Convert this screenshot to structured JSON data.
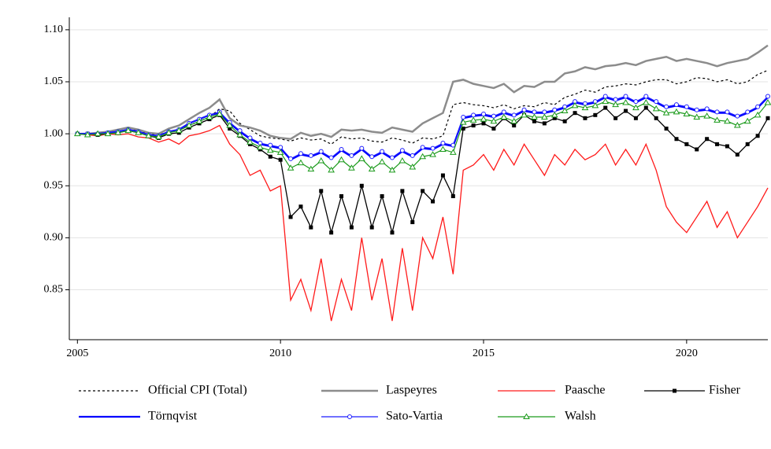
{
  "chart_data": {
    "type": "line",
    "x": [
      2005,
      2005.25,
      2005.5,
      2005.75,
      2006,
      2006.25,
      2006.5,
      2006.75,
      2007,
      2007.25,
      2007.5,
      2007.75,
      2008,
      2008.25,
      2008.5,
      2008.75,
      2009,
      2009.25,
      2009.5,
      2009.75,
      2010,
      2010.25,
      2010.5,
      2010.75,
      2011,
      2011.25,
      2011.5,
      2011.75,
      2012,
      2012.25,
      2012.5,
      2012.75,
      2013,
      2013.25,
      2013.5,
      2013.75,
      2014,
      2014.25,
      2014.5,
      2014.75,
      2015,
      2015.25,
      2015.5,
      2015.75,
      2016,
      2016.25,
      2016.5,
      2016.75,
      2017,
      2017.25,
      2017.5,
      2017.75,
      2018,
      2018.25,
      2018.5,
      2018.75,
      2019,
      2019.25,
      2019.5,
      2019.75,
      2020,
      2020.25,
      2020.5,
      2020.75,
      2021,
      2021.25,
      2021.5,
      2021.75,
      2022
    ],
    "xlim": [
      2004.8,
      2022
    ],
    "xticks": [
      2005,
      2010,
      2015,
      2020
    ],
    "ylim": [
      0.802,
      1.112
    ],
    "yticks": [
      {
        "value": 0.85,
        "label": "0.85"
      },
      {
        "value": 0.9,
        "label": "0.90"
      },
      {
        "value": 0.95,
        "label": "0.95"
      },
      {
        "value": 1,
        "label": "1.00"
      },
      {
        "value": 1.05,
        "label": "1.05"
      },
      {
        "value": 1.1,
        "label": "1.10"
      }
    ],
    "grid": true,
    "series": [
      {
        "name": "Official CPI (Total)",
        "color": "#000000",
        "dash": true,
        "width": 1.2,
        "marker": null,
        "values": [
          1.0,
          0.999,
          1.0,
          1.001,
          1.002,
          1.004,
          1.003,
          1.0,
          0.999,
          1.002,
          1.004,
          1.008,
          1.012,
          1.016,
          1.024,
          1.022,
          1.01,
          1.004,
          0.998,
          0.996,
          0.995,
          0.993,
          0.996,
          0.994,
          0.995,
          0.99,
          0.997,
          0.995,
          0.996,
          0.993,
          0.992,
          0.996,
          0.994,
          0.991,
          0.996,
          0.995,
          0.998,
          1.028,
          1.03,
          1.028,
          1.027,
          1.025,
          1.028,
          1.024,
          1.027,
          1.026,
          1.03,
          1.028,
          1.035,
          1.038,
          1.042,
          1.04,
          1.045,
          1.046,
          1.048,
          1.047,
          1.05,
          1.052,
          1.052,
          1.048,
          1.05,
          1.054,
          1.053,
          1.05,
          1.052,
          1.048,
          1.05,
          1.057,
          1.061
        ]
      },
      {
        "name": "Laspeyres",
        "color": "#8c8c8c",
        "dash": false,
        "width": 2.5,
        "marker": null,
        "values": [
          1.0,
          1.0,
          1.001,
          1.002,
          1.004,
          1.006,
          1.004,
          1.001,
          1.0,
          1.005,
          1.008,
          1.014,
          1.02,
          1.025,
          1.033,
          1.015,
          1.008,
          1.006,
          1.003,
          0.998,
          0.996,
          0.995,
          1.001,
          0.998,
          1.0,
          0.997,
          1.004,
          1.003,
          1.004,
          1.002,
          1.001,
          1.006,
          1.004,
          1.002,
          1.01,
          1.015,
          1.02,
          1.05,
          1.052,
          1.048,
          1.046,
          1.044,
          1.048,
          1.04,
          1.046,
          1.045,
          1.05,
          1.05,
          1.058,
          1.06,
          1.064,
          1.062,
          1.065,
          1.066,
          1.068,
          1.066,
          1.07,
          1.072,
          1.074,
          1.07,
          1.072,
          1.07,
          1.068,
          1.065,
          1.068,
          1.07,
          1.072,
          1.078,
          1.085
        ]
      },
      {
        "name": "Paasche",
        "color": "#ff1a1a",
        "dash": false,
        "width": 1.3,
        "marker": null,
        "values": [
          1.0,
          0.999,
          0.998,
          1.0,
          0.999,
          1.0,
          0.997,
          0.996,
          0.992,
          0.995,
          0.99,
          0.998,
          1.0,
          1.003,
          1.008,
          0.99,
          0.98,
          0.96,
          0.965,
          0.945,
          0.95,
          0.84,
          0.86,
          0.83,
          0.88,
          0.82,
          0.86,
          0.83,
          0.9,
          0.84,
          0.88,
          0.82,
          0.89,
          0.83,
          0.9,
          0.88,
          0.92,
          0.865,
          0.965,
          0.97,
          0.98,
          0.965,
          0.985,
          0.97,
          0.99,
          0.975,
          0.96,
          0.98,
          0.97,
          0.985,
          0.975,
          0.98,
          0.99,
          0.97,
          0.985,
          0.97,
          0.99,
          0.965,
          0.93,
          0.915,
          0.905,
          0.92,
          0.935,
          0.91,
          0.925,
          0.9,
          0.915,
          0.93,
          0.948
        ]
      },
      {
        "name": "Fisher",
        "color": "#000000",
        "dash": false,
        "width": 1.3,
        "marker": "square",
        "values": [
          1.0,
          1.0,
          0.999,
          1.0,
          1.001,
          1.003,
          1.001,
          0.998,
          0.996,
          1.0,
          1.001,
          1.006,
          1.01,
          1.014,
          1.018,
          1.005,
          0.998,
          0.99,
          0.985,
          0.978,
          0.975,
          0.92,
          0.93,
          0.91,
          0.945,
          0.905,
          0.94,
          0.91,
          0.95,
          0.91,
          0.94,
          0.905,
          0.945,
          0.915,
          0.945,
          0.935,
          0.96,
          0.94,
          1.005,
          1.008,
          1.01,
          1.005,
          1.015,
          1.008,
          1.018,
          1.012,
          1.01,
          1.015,
          1.012,
          1.02,
          1.015,
          1.018,
          1.025,
          1.015,
          1.022,
          1.015,
          1.025,
          1.015,
          1.005,
          0.995,
          0.99,
          0.985,
          0.995,
          0.99,
          0.988,
          0.98,
          0.99,
          0.998,
          1.015
        ]
      },
      {
        "name": "Törnqvist",
        "color": "#0000ff",
        "dash": false,
        "width": 2.2,
        "marker": null,
        "values": [
          1.0,
          1.0,
          1.0,
          1.001,
          1.002,
          1.004,
          1.002,
          0.999,
          0.998,
          1.002,
          1.004,
          1.01,
          1.014,
          1.018,
          1.02,
          1.01,
          1.002,
          0.995,
          0.99,
          0.988,
          0.986,
          0.975,
          0.98,
          0.978,
          0.982,
          0.976,
          0.984,
          0.978,
          0.985,
          0.977,
          0.982,
          0.976,
          0.983,
          0.978,
          0.986,
          0.985,
          0.99,
          0.988,
          1.015,
          1.017,
          1.018,
          1.016,
          1.02,
          1.017,
          1.022,
          1.02,
          1.02,
          1.022,
          1.025,
          1.03,
          1.028,
          1.03,
          1.035,
          1.032,
          1.035,
          1.03,
          1.035,
          1.03,
          1.025,
          1.027,
          1.025,
          1.022,
          1.023,
          1.02,
          1.02,
          1.016,
          1.02,
          1.025,
          1.035
        ]
      },
      {
        "name": "Sato-Vartia",
        "color": "#1a1aff",
        "dash": false,
        "width": 1.2,
        "marker": "circle",
        "values": [
          1.0,
          1.0,
          1.0,
          1.001,
          1.002,
          1.004,
          1.002,
          0.999,
          0.998,
          1.002,
          1.004,
          1.01,
          1.014,
          1.018,
          1.021,
          1.011,
          1.003,
          0.996,
          0.991,
          0.989,
          0.987,
          0.976,
          0.981,
          0.979,
          0.983,
          0.977,
          0.985,
          0.979,
          0.986,
          0.978,
          0.983,
          0.977,
          0.984,
          0.979,
          0.987,
          0.986,
          0.991,
          0.989,
          1.016,
          1.018,
          1.019,
          1.017,
          1.021,
          1.018,
          1.023,
          1.021,
          1.021,
          1.023,
          1.026,
          1.031,
          1.029,
          1.031,
          1.036,
          1.033,
          1.036,
          1.031,
          1.036,
          1.031,
          1.026,
          1.028,
          1.026,
          1.023,
          1.024,
          1.021,
          1.021,
          1.017,
          1.021,
          1.026,
          1.036
        ]
      },
      {
        "name": "Walsh",
        "color": "#1a9a1a",
        "dash": false,
        "width": 1.2,
        "marker": "triangle",
        "values": [
          1.0,
          0.999,
          1.0,
          1.0,
          1.001,
          1.003,
          1.001,
          0.998,
          0.997,
          1.001,
          1.003,
          1.008,
          1.012,
          1.016,
          1.019,
          1.008,
          0.999,
          0.992,
          0.987,
          0.984,
          0.982,
          0.967,
          0.972,
          0.966,
          0.974,
          0.965,
          0.975,
          0.967,
          0.976,
          0.966,
          0.973,
          0.965,
          0.974,
          0.968,
          0.978,
          0.98,
          0.985,
          0.982,
          1.011,
          1.013,
          1.014,
          1.012,
          1.016,
          1.012,
          1.018,
          1.016,
          1.016,
          1.018,
          1.022,
          1.027,
          1.025,
          1.027,
          1.031,
          1.028,
          1.03,
          1.025,
          1.03,
          1.024,
          1.02,
          1.021,
          1.019,
          1.016,
          1.017,
          1.013,
          1.012,
          1.008,
          1.012,
          1.018,
          1.03
        ]
      }
    ]
  }
}
